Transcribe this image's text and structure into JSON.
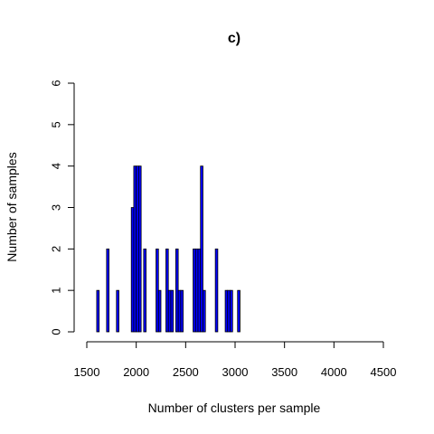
{
  "chart_data": {
    "type": "bar",
    "title": "c)",
    "xlabel": "Number of clusters per sample",
    "ylabel": "Number of samples",
    "xlim": [
      1500,
      4500
    ],
    "ylim": [
      0,
      6
    ],
    "x_ticks": [
      1500,
      2000,
      2500,
      3000,
      3500,
      4000,
      4500
    ],
    "y_ticks": [
      0,
      1,
      2,
      3,
      4,
      5,
      6
    ],
    "bin_width": 25,
    "bar_color": "#0000ff",
    "grid": false,
    "legend": "none",
    "bins": [
      {
        "start": 1600,
        "count": 1
      },
      {
        "start": 1700,
        "count": 2
      },
      {
        "start": 1800,
        "count": 1
      },
      {
        "start": 1950,
        "count": 3
      },
      {
        "start": 1975,
        "count": 4
      },
      {
        "start": 2000,
        "count": 4
      },
      {
        "start": 2025,
        "count": 4
      },
      {
        "start": 2075,
        "count": 2
      },
      {
        "start": 2200,
        "count": 2
      },
      {
        "start": 2225,
        "count": 1
      },
      {
        "start": 2300,
        "count": 2
      },
      {
        "start": 2325,
        "count": 1
      },
      {
        "start": 2350,
        "count": 1
      },
      {
        "start": 2400,
        "count": 2
      },
      {
        "start": 2425,
        "count": 1
      },
      {
        "start": 2450,
        "count": 1
      },
      {
        "start": 2575,
        "count": 2
      },
      {
        "start": 2600,
        "count": 2
      },
      {
        "start": 2625,
        "count": 2
      },
      {
        "start": 2650,
        "count": 4
      },
      {
        "start": 2675,
        "count": 1
      },
      {
        "start": 2800,
        "count": 2
      },
      {
        "start": 2900,
        "count": 1
      },
      {
        "start": 2925,
        "count": 1
      },
      {
        "start": 2950,
        "count": 1
      },
      {
        "start": 3025,
        "count": 1
      }
    ]
  }
}
